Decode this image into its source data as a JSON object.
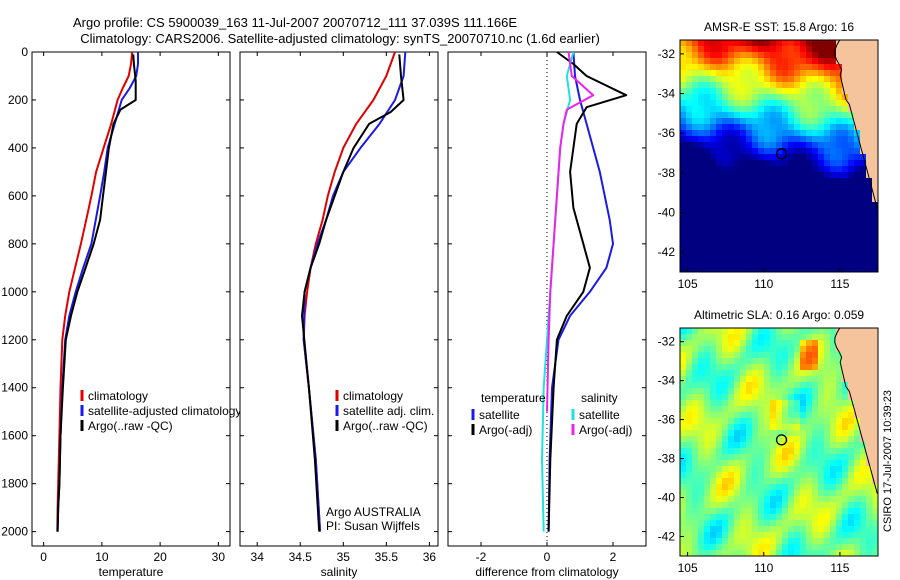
{
  "header": {
    "line1": "Argo profile: CS 5900039_163 11-Jul-2007 20070712_111 37.039S 111.166E",
    "line2": "Climatology: CARS2006. Satellite-adjusted climatology: synTS_20070710.nc (1.6d earlier)"
  },
  "credit": "CSIRO 17-Jul-2007 10:39:23",
  "colors": {
    "clim": "#e00000",
    "sat": "#1a1ae6",
    "argo": "#000000",
    "sal_sat": "#22e0e0",
    "sal_argo": "#ee22ee"
  },
  "chart_data": [
    {
      "type": "line",
      "xlabel": "temperature",
      "ylabel": "",
      "xlim": [
        -2,
        32
      ],
      "ylim": [
        2060,
        0
      ],
      "y_inverted": true,
      "xticks": [
        0,
        10,
        20,
        30
      ],
      "yticks": [
        0,
        200,
        400,
        600,
        800,
        1000,
        1200,
        1400,
        1600,
        1800,
        2000
      ],
      "legend": [
        "climatology",
        "satellite-adjusted climatology",
        "Argo(..raw -QC)"
      ],
      "legend_placement": "lower-center",
      "series": [
        {
          "name": "climatology",
          "color": "clim",
          "x": [
            15.2,
            15.0,
            14.6,
            13.6,
            12.7,
            11.6,
            10.3,
            9.0,
            8.2,
            7.3,
            6.4,
            5.4,
            4.4,
            3.7,
            3.2,
            2.9,
            2.7,
            2.5,
            2.4,
            2.35
          ],
          "y": [
            0,
            50,
            100,
            150,
            200,
            300,
            400,
            500,
            600,
            700,
            800,
            900,
            1000,
            1100,
            1200,
            1400,
            1600,
            1800,
            1900,
            2000
          ]
        },
        {
          "name": "satellite-adjusted climatology",
          "color": "sat",
          "x": [
            16.2,
            16.2,
            15.9,
            14.8,
            13.4,
            12.2,
            11.0,
            10.4,
            9.7,
            8.2,
            6.8,
            5.5,
            4.4,
            3.7,
            3.2,
            2.9,
            2.7,
            2.5,
            2.4
          ],
          "y": [
            0,
            50,
            100,
            150,
            200,
            300,
            400,
            500,
            600,
            800,
            900,
            1000,
            1100,
            1200,
            1400,
            1600,
            1800,
            1900,
            2000
          ]
        },
        {
          "name": "Argo(..raw -QC)",
          "color": "argo",
          "x": [
            15.4,
            15.5,
            15.8,
            15.8,
            15.8,
            13.2,
            12.0,
            11.2,
            10.7,
            10.2,
            9.7,
            8.6,
            7.2,
            5.8,
            4.7,
            3.8,
            3.3,
            2.9,
            2.7,
            2.5,
            2.4
          ],
          "y": [
            10,
            50,
            120,
            170,
            200,
            240,
            300,
            400,
            500,
            600,
            700,
            800,
            900,
            1000,
            1100,
            1200,
            1400,
            1600,
            1800,
            1900,
            2000
          ]
        }
      ]
    },
    {
      "type": "line",
      "xlabel": "salinity",
      "ylabel": "",
      "xlim": [
        33.8,
        36.1
      ],
      "ylim": [
        2060,
        0
      ],
      "y_inverted": true,
      "xticks": [
        34,
        34.5,
        35,
        35.5,
        36
      ],
      "yticks": [],
      "legend": [
        "climatology",
        "satellite adj. clim.",
        "Argo(..raw -QC)"
      ],
      "legend_placement": "lower-right",
      "annotations": [
        "Argo AUSTRALIA",
        "PI: Susan Wijffels"
      ],
      "series": [
        {
          "name": "climatology",
          "color": "clim",
          "x": [
            35.6,
            35.5,
            35.35,
            35.15,
            35.0,
            34.9,
            34.82,
            34.76,
            34.68,
            34.62,
            34.58,
            34.55,
            34.54,
            34.6,
            34.68,
            34.73
          ],
          "y": [
            0,
            100,
            200,
            300,
            400,
            500,
            600,
            700,
            800,
            900,
            1000,
            1100,
            1200,
            1400,
            1700,
            2000
          ]
        },
        {
          "name": "satellite adj. clim.",
          "color": "sat",
          "x": [
            35.72,
            35.7,
            35.6,
            35.42,
            35.2,
            35.0,
            34.88,
            34.8,
            34.7,
            34.62,
            34.55,
            34.54,
            34.6,
            34.68,
            34.73
          ],
          "y": [
            0,
            100,
            200,
            300,
            400,
            500,
            600,
            700,
            800,
            900,
            1000,
            1200,
            1400,
            1700,
            2000
          ]
        },
        {
          "name": "Argo(..raw -QC)",
          "color": "argo",
          "x": [
            35.65,
            35.67,
            35.7,
            35.55,
            35.3,
            35.12,
            35.0,
            34.9,
            34.8,
            34.72,
            34.62,
            34.55,
            34.52,
            34.6,
            34.67,
            34.72
          ],
          "y": [
            10,
            100,
            200,
            250,
            300,
            400,
            500,
            600,
            700,
            800,
            900,
            1000,
            1100,
            1400,
            1700,
            2000
          ]
        }
      ]
    },
    {
      "type": "line",
      "xlabel": "difference from climatology",
      "ylabel": "",
      "xlim": [
        -3,
        3
      ],
      "ylim": [
        2060,
        0
      ],
      "y_inverted": true,
      "xticks": [
        -2,
        0,
        2
      ],
      "yticks": [],
      "zero_line": "dotted",
      "legend_groups": [
        {
          "title": "temperature",
          "entries": [
            "satellite",
            "Argo(-adj)"
          ]
        },
        {
          "title": "salinity",
          "entries": [
            "satellite",
            "Argo(-adj)"
          ]
        }
      ],
      "legend_placement": "lower-center",
      "series": [
        {
          "name": "temperature satellite",
          "color": "sat",
          "x": [
            0.8,
            0.85,
            1.0,
            1.2,
            1.6,
            1.9,
            2.0,
            1.8,
            1.3,
            0.7,
            0.35,
            0.15,
            0.08,
            0.05
          ],
          "y": [
            0,
            100,
            200,
            300,
            500,
            700,
            800,
            900,
            1000,
            1100,
            1200,
            1400,
            1700,
            2000
          ]
        },
        {
          "name": "temperature Argo(-adj)",
          "color": "argo",
          "x": [
            0.3,
            0.8,
            1.2,
            2.4,
            1.2,
            0.9,
            0.7,
            0.8,
            1.1,
            1.3,
            1.1,
            0.6,
            0.3,
            0.2,
            0.1,
            0.05
          ],
          "y": [
            0,
            50,
            100,
            180,
            230,
            300,
            500,
            650,
            800,
            900,
            1000,
            1100,
            1200,
            1400,
            1700,
            2000
          ]
        },
        {
          "name": "salinity satellite",
          "color": "sal_sat",
          "x": [
            0.8,
            0.6,
            0.7,
            0.5,
            0.4,
            0.3,
            0.2,
            0.1,
            0.0,
            -0.1,
            -0.15,
            -0.1
          ],
          "y": [
            0,
            100,
            200,
            300,
            400,
            600,
            800,
            1000,
            1200,
            1400,
            1700,
            2000
          ]
        },
        {
          "name": "salinity Argo(-adj)",
          "color": "sal_argo",
          "x": [
            0.65,
            0.75,
            1.4,
            0.6,
            0.5,
            0.4,
            0.3,
            0.2,
            0.1,
            0.05,
            0.0
          ],
          "y": [
            0,
            100,
            180,
            240,
            300,
            400,
            600,
            800,
            1000,
            1200,
            1500
          ]
        }
      ]
    },
    {
      "type": "heatmap",
      "title": "AMSR-E SST: 15.8 Argo: 16",
      "xlim": [
        104.5,
        117.5
      ],
      "ylim": [
        -43,
        -31.3
      ],
      "xticks": [
        105,
        110,
        115
      ],
      "yticks": [
        -32,
        -34,
        -36,
        -38,
        -40,
        -42
      ],
      "marker": {
        "x": 111.166,
        "y": -37.04
      },
      "palette": "jet"
    },
    {
      "type": "heatmap",
      "title": "Altimetric SLA: 0.16 Argo: 0.059",
      "xlim": [
        104.5,
        117.5
      ],
      "ylim": [
        -43,
        -31.3
      ],
      "xticks": [
        105,
        110,
        115
      ],
      "yticks": [
        -32,
        -34,
        -36,
        -38,
        -40,
        -42
      ],
      "marker": {
        "x": 111.166,
        "y": -37.04
      },
      "palette": "jet"
    }
  ]
}
